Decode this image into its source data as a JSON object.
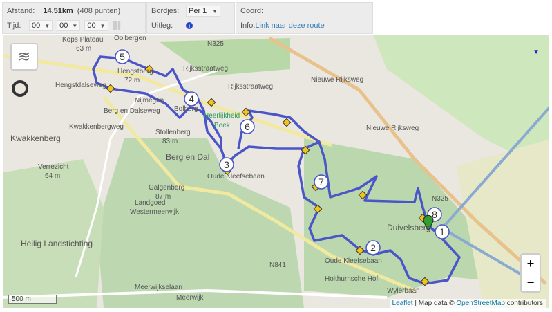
{
  "info": {
    "distance_label": "Afstand:",
    "distance_value": "14.51km",
    "points": "(408 punten)",
    "time_label": "Tijd:",
    "time_hours": "00",
    "time_minutes": "00",
    "time_seconds": "00",
    "signs_label": "Bordjes:",
    "signs_value": "Per 1",
    "explain_label": "Uitleg:",
    "coord_label": "Coord:",
    "info_label": "Info:",
    "route_link": "Link naar deze route"
  },
  "map": {
    "labels": [
      "Kops Plateau",
      "63 m",
      "Ooibergen",
      "N325",
      "Rijksstraatweg",
      "Rijksstraatweg",
      "Hengstberg",
      "72 m",
      "Hengstdalseweg",
      "Berg en Dalseweg",
      "Nijmegen",
      "Bolberg",
      "Heerlijkheid",
      "Beek",
      "Stollenberg",
      "83 m",
      "Kwakkenberg",
      "Kwakkenbergweg",
      "Berg en Dal",
      "Oude Kleefsebaan",
      "Verrezicht",
      "64 m",
      "Galgenberg",
      "87 m",
      "Landgoed",
      "Westermeerwijk",
      "Heilig Landstichting",
      "Nieuwe Rijksweg",
      "Nieuwe Rijksweg",
      "N325",
      "Duivelsberg",
      "Oude Kleefsebaan",
      "N841",
      "Meerwijkselaan",
      "Meerwijk",
      "Holthurnsche Hof",
      "Wylerbaan"
    ],
    "waypoints": [
      "1",
      "2",
      "3",
      "4",
      "5",
      "6",
      "7",
      "8"
    ],
    "route_color": "#4a55c8",
    "scale": "500 m",
    "zoom_in": "+",
    "zoom_out": "−",
    "attribution_leaflet": "Leaflet",
    "attribution_text": "| Map data ©",
    "attribution_osm": "OpenStreetMap",
    "attribution_contrib": "contributors"
  }
}
